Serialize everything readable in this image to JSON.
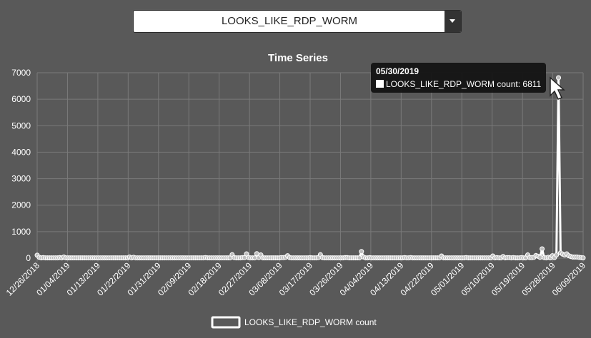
{
  "selector": {
    "selected": "LOOKS_LIKE_RDP_WORM"
  },
  "tooltip": {
    "date": "05/30/2019",
    "label": "LOOKS_LIKE_RDP_WORM count: 6811"
  },
  "colors": {
    "background": "#595959",
    "line": "#ffffff",
    "grid": "#7a7a7a",
    "tooltip_bg": "#111111"
  },
  "chart_data": {
    "type": "line",
    "title": "Time Series",
    "xlabel": "",
    "ylabel": "",
    "ylim": [
      0,
      7000
    ],
    "yticks": [
      0,
      1000,
      2000,
      3000,
      4000,
      5000,
      6000,
      7000
    ],
    "xticks": [
      "12/26/2018",
      "01/04/2019",
      "01/13/2019",
      "01/22/2019",
      "01/31/2019",
      "02/09/2019",
      "02/18/2019",
      "02/27/2019",
      "03/08/2019",
      "03/17/2019",
      "03/26/2019",
      "04/04/2019",
      "04/13/2019",
      "04/22/2019",
      "05/01/2019",
      "05/10/2019",
      "05/19/2019",
      "05/28/2019",
      "06/09/2019"
    ],
    "grid": true,
    "legend_position": "bottom",
    "series": [
      {
        "name": "LOOKS_LIKE_RDP_WORM count",
        "start_date": "12/26/2018",
        "values": [
          110,
          30,
          10,
          20,
          10,
          10,
          10,
          10,
          10,
          10,
          10,
          20,
          10,
          40,
          10,
          10,
          10,
          10,
          10,
          10,
          10,
          10,
          10,
          10,
          10,
          10,
          10,
          10,
          10,
          10,
          10,
          10,
          10,
          10,
          10,
          10,
          10,
          10,
          10,
          10,
          10,
          10,
          10,
          10,
          10,
          40,
          10,
          30,
          10,
          10,
          10,
          10,
          10,
          10,
          10,
          10,
          10,
          10,
          10,
          10,
          10,
          10,
          10,
          10,
          10,
          10,
          10,
          10,
          10,
          10,
          10,
          10,
          10,
          10,
          10,
          10,
          10,
          10,
          10,
          10,
          10,
          10,
          20,
          10,
          10,
          10,
          10,
          10,
          10,
          10,
          10,
          10,
          10,
          10,
          10,
          130,
          20,
          10,
          10,
          10,
          20,
          20,
          160,
          20,
          10,
          10,
          10,
          170,
          20,
          120,
          10,
          10,
          10,
          10,
          10,
          10,
          10,
          10,
          10,
          20,
          20,
          30,
          90,
          20,
          10,
          10,
          10,
          10,
          10,
          10,
          10,
          10,
          10,
          20,
          10,
          10,
          10,
          20,
          130,
          20,
          10,
          10,
          10,
          10,
          10,
          10,
          10,
          10,
          10,
          10,
          20,
          20,
          10,
          10,
          10,
          10,
          10,
          10,
          250,
          40,
          10,
          10,
          20,
          10,
          10,
          10,
          10,
          10,
          10,
          10,
          10,
          10,
          10,
          10,
          10,
          10,
          10,
          10,
          10,
          20,
          10,
          10,
          20,
          10,
          10,
          10,
          10,
          10,
          10,
          10,
          10,
          10,
          10,
          10,
          10,
          10,
          10,
          80,
          10,
          10,
          10,
          10,
          10,
          10,
          10,
          10,
          10,
          10,
          10,
          20,
          10,
          10,
          10,
          10,
          10,
          10,
          10,
          10,
          10,
          10,
          10,
          10,
          80,
          10,
          20,
          10,
          10,
          60,
          10,
          20,
          20,
          10,
          20,
          10,
          10,
          10,
          20,
          10,
          10,
          120,
          20,
          20,
          30,
          100,
          70,
          30,
          350,
          20,
          10,
          30,
          10,
          90,
          20,
          120,
          6811,
          200,
          150,
          120,
          160,
          90,
          60,
          40,
          40,
          40,
          30,
          20,
          10
        ]
      }
    ]
  }
}
